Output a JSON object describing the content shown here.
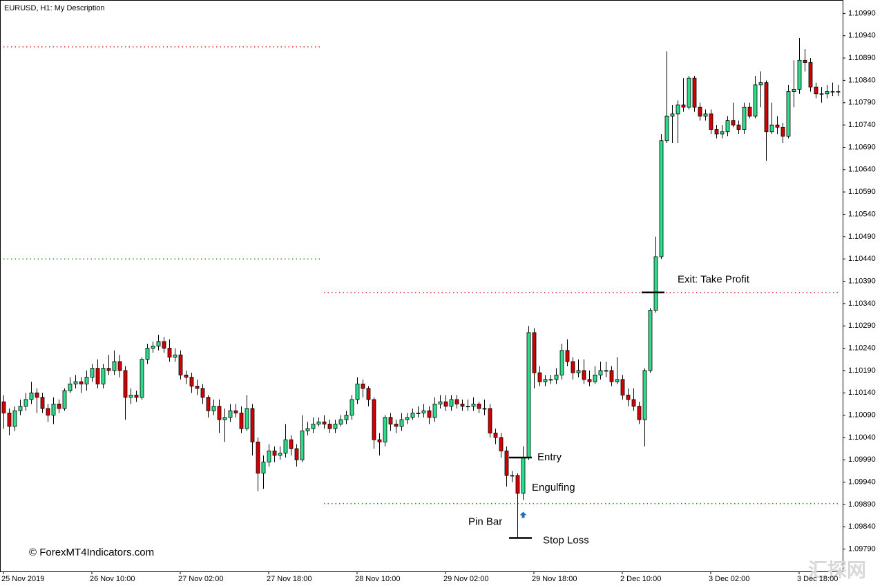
{
  "chart_data": {
    "type": "candlestick",
    "title": "EURUSD, H1:  My Description",
    "watermark": "© ForexMT4Indicators.com",
    "corner_mark": "汇探网",
    "up_color": "#2fdc8a",
    "down_color": "#d40000",
    "ylim": [
      1.0974,
      1.1102
    ],
    "yticks": [
      {
        "value": 1.0979,
        "label": "1.09790"
      },
      {
        "value": 1.0984,
        "label": "1.09840"
      },
      {
        "value": 1.0989,
        "label": "1.09890"
      },
      {
        "value": 1.0994,
        "label": "1.09940"
      },
      {
        "value": 1.0999,
        "label": "1.09990"
      },
      {
        "value": 1.1004,
        "label": "1.10040"
      },
      {
        "value": 1.1009,
        "label": "1.10090"
      },
      {
        "value": 1.1014,
        "label": "1.10140"
      },
      {
        "value": 1.1019,
        "label": "1.10190"
      },
      {
        "value": 1.1024,
        "label": "1.10240"
      },
      {
        "value": 1.1029,
        "label": "1.10290"
      },
      {
        "value": 1.1034,
        "label": "1.10340"
      },
      {
        "value": 1.1039,
        "label": "1.10390"
      },
      {
        "value": 1.1044,
        "label": "1.10440"
      },
      {
        "value": 1.1049,
        "label": "1.10490"
      },
      {
        "value": 1.1054,
        "label": "1.10540"
      },
      {
        "value": 1.1059,
        "label": "1.10590"
      },
      {
        "value": 1.1064,
        "label": "1.10640"
      },
      {
        "value": 1.1069,
        "label": "1.10690"
      },
      {
        "value": 1.1074,
        "label": "1.10740"
      },
      {
        "value": 1.1079,
        "label": "1.10790"
      },
      {
        "value": 1.1084,
        "label": "1.10840"
      },
      {
        "value": 1.1089,
        "label": "1.10890"
      },
      {
        "value": 1.1094,
        "label": "1.10940"
      },
      {
        "value": 1.1099,
        "label": "1.10990"
      }
    ],
    "categories": [
      "25 Nov 2019",
      null,
      null,
      null,
      null,
      null,
      null,
      null,
      null,
      null,
      null,
      null,
      null,
      null,
      null,
      null,
      "26 Nov 10:00",
      null,
      null,
      null,
      null,
      null,
      null,
      null,
      null,
      null,
      null,
      null,
      null,
      null,
      null,
      null,
      "27 Nov 02:00",
      null,
      null,
      null,
      null,
      null,
      null,
      null,
      null,
      null,
      null,
      null,
      null,
      null,
      null,
      null,
      "27 Nov 18:00",
      null,
      null,
      null,
      null,
      null,
      null,
      null,
      null,
      null,
      null,
      null,
      null,
      null,
      null,
      null,
      "28 Nov 10:00",
      null,
      null,
      null,
      null,
      null,
      null,
      null,
      null,
      null,
      null,
      null,
      null,
      null,
      null,
      null,
      "29 Nov 02:00",
      null,
      null,
      null,
      null,
      null,
      null,
      null,
      null,
      null,
      null,
      null,
      null,
      null,
      null,
      null,
      "29 Nov 18:00",
      null,
      null,
      null,
      null,
      null,
      null,
      null,
      null,
      null,
      null,
      null,
      null,
      null,
      null,
      null,
      "2 Dec 10:00",
      null,
      null,
      null,
      null,
      null,
      null,
      null,
      null,
      null,
      null,
      null,
      null,
      null,
      null,
      null,
      "3 Dec 02:00",
      null,
      null,
      null,
      null,
      null,
      null,
      null,
      null,
      null,
      null,
      null,
      null,
      null,
      null,
      null,
      "3 Dec 18:00",
      null,
      null,
      null,
      null,
      null,
      null,
      null
    ],
    "open": [
      1.1012,
      1.10095,
      1.10065,
      1.101,
      1.1011,
      1.10125,
      1.1014,
      1.1013,
      1.10105,
      1.1009,
      1.10115,
      1.10105,
      1.10145,
      1.1016,
      1.10165,
      1.1016,
      1.10175,
      1.10195,
      1.1016,
      1.10195,
      1.1019,
      1.1021,
      1.1019,
      1.1013,
      1.10135,
      1.1013,
      1.10215,
      1.1024,
      1.10245,
      1.10255,
      1.1024,
      1.1022,
      1.10225,
      1.1018,
      1.10175,
      1.10155,
      1.1015,
      1.1013,
      1.101,
      1.1011,
      1.1008,
      1.10085,
      1.101,
      1.10095,
      1.1006,
      1.10105,
      1.1003,
      1.0996,
      1.09985,
      1.1001,
      1.1,
      1.10005,
      1.10035,
      1.10015,
      1.0999,
      1.10055,
      1.1006,
      1.1007,
      1.10075,
      1.1007,
      1.1006,
      1.1007,
      1.1008,
      1.1009,
      1.10125,
      1.1016,
      1.1015,
      1.10125,
      1.10035,
      1.1003,
      1.10085,
      1.1007,
      1.10065,
      1.1008,
      1.10085,
      1.10095,
      1.10095,
      1.101,
      1.10085,
      1.10115,
      1.1012,
      1.1011,
      1.10125,
      1.10115,
      1.1011,
      1.1011,
      1.10115,
      1.10105,
      1.10105,
      1.1005,
      1.1004,
      1.1001,
      1.09955,
      1.09955,
      1.09915,
      1.09995,
      1.10275,
      1.10185,
      1.10165,
      1.1017,
      1.1017,
      1.1018,
      1.10235,
      1.1021,
      1.10185,
      1.1019,
      1.1017,
      1.10165,
      1.1018,
      1.1019,
      1.1019,
      1.10165,
      1.1017,
      1.10135,
      1.10125,
      1.1011,
      1.1008,
      1.1019,
      1.10325,
      1.10445,
      1.10705,
      1.1076,
      1.10765,
      1.10785,
      1.1078,
      1.10845,
      1.1078,
      1.1076,
      1.10765,
      1.1073,
      1.1072,
      1.10725,
      1.1075,
      1.1074,
      1.1073,
      1.1078,
      1.1076,
      1.1083,
      1.10835,
      1.10725,
      1.1074,
      1.10735,
      1.10715,
      1.10815,
      1.1082,
      1.10885,
      1.1088,
      1.10825,
      1.1081,
      1.1081,
      1.10815,
      1.10815
    ],
    "high": [
      1.10135,
      1.10105,
      1.1011,
      1.10125,
      1.1014,
      1.10165,
      1.1015,
      1.1014,
      1.10115,
      1.1013,
      1.10125,
      1.1015,
      1.10175,
      1.1018,
      1.10175,
      1.1019,
      1.10205,
      1.10215,
      1.10205,
      1.10225,
      1.10235,
      1.10225,
      1.102,
      1.1015,
      1.10145,
      1.1022,
      1.1025,
      1.10255,
      1.1027,
      1.10265,
      1.1026,
      1.1024,
      1.10235,
      1.1019,
      1.10185,
      1.1017,
      1.1016,
      1.10135,
      1.10125,
      1.10125,
      1.10105,
      1.10115,
      1.10115,
      1.1011,
      1.10135,
      1.10115,
      1.1004,
      1.1,
      1.10025,
      1.1002,
      1.1002,
      1.1007,
      1.10045,
      1.10025,
      1.1009,
      1.10075,
      1.10085,
      1.10085,
      1.1009,
      1.1008,
      1.1008,
      1.1009,
      1.101,
      1.10135,
      1.10175,
      1.1017,
      1.10155,
      1.1013,
      1.1005,
      1.1009,
      1.10095,
      1.1008,
      1.10095,
      1.10095,
      1.10105,
      1.1011,
      1.10115,
      1.1011,
      1.1013,
      1.10135,
      1.10135,
      1.10135,
      1.10135,
      1.10125,
      1.10125,
      1.1013,
      1.1012,
      1.10125,
      1.10115,
      1.1006,
      1.1005,
      1.1002,
      1.09965,
      1.0996,
      1.1002,
      1.1029,
      1.10285,
      1.102,
      1.1018,
      1.1018,
      1.10195,
      1.1025,
      1.1026,
      1.1022,
      1.10215,
      1.10215,
      1.1019,
      1.102,
      1.1021,
      1.1021,
      1.102,
      1.1022,
      1.1018,
      1.1015,
      1.1015,
      1.1012,
      1.10195,
      1.1033,
      1.1049,
      1.1072,
      1.10905,
      1.10785,
      1.10795,
      1.10845,
      1.1085,
      1.1085,
      1.1079,
      1.10775,
      1.10775,
      1.1074,
      1.1074,
      1.1076,
      1.1079,
      1.1075,
      1.1079,
      1.1079,
      1.1085,
      1.1086,
      1.1084,
      1.1079,
      1.1076,
      1.10745,
      1.1083,
      1.10885,
      1.10935,
      1.1091,
      1.1089,
      1.10835,
      1.10825,
      1.1083,
      1.10835,
      1.1083
    ],
    "low": [
      1.1006,
      1.10045,
      1.10055,
      1.1009,
      1.101,
      1.10115,
      1.10095,
      1.10095,
      1.10075,
      1.1007,
      1.10095,
      1.101,
      1.1014,
      1.1015,
      1.1014,
      1.10145,
      1.10165,
      1.1015,
      1.1015,
      1.1018,
      1.1018,
      1.10175,
      1.1008,
      1.10115,
      1.1012,
      1.10125,
      1.10205,
      1.1023,
      1.10235,
      1.1023,
      1.1021,
      1.1021,
      1.1017,
      1.1016,
      1.1014,
      1.10135,
      1.10115,
      1.10085,
      1.1009,
      1.1005,
      1.1003,
      1.10075,
      1.10085,
      1.1005,
      1.10055,
      1.1,
      1.0992,
      1.09925,
      1.09975,
      1.09985,
      1.0999,
      1.09995,
      1.1,
      1.09975,
      1.09985,
      1.10045,
      1.1005,
      1.10065,
      1.1006,
      1.1005,
      1.1005,
      1.10065,
      1.1007,
      1.1008,
      1.10115,
      1.1013,
      1.1011,
      1.10015,
      1.1,
      1.1002,
      1.10055,
      1.1005,
      1.10055,
      1.1007,
      1.1008,
      1.10085,
      1.10085,
      1.1007,
      1.10075,
      1.10105,
      1.101,
      1.101,
      1.10105,
      1.101,
      1.101,
      1.101,
      1.10095,
      1.1009,
      1.1004,
      1.10025,
      1.09995,
      1.0993,
      1.0994,
      1.09815,
      1.099,
      1.0999,
      1.1015,
      1.10155,
      1.10155,
      1.1016,
      1.1016,
      1.1017,
      1.102,
      1.1017,
      1.10175,
      1.1016,
      1.10155,
      1.1016,
      1.1017,
      1.10175,
      1.10155,
      1.1016,
      1.10125,
      1.1011,
      1.101,
      1.1007,
      1.1002,
      1.10185,
      1.1032,
      1.1044,
      1.107,
      1.107,
      1.107,
      1.1077,
      1.10775,
      1.1077,
      1.1075,
      1.1075,
      1.1072,
      1.1071,
      1.1071,
      1.10715,
      1.10735,
      1.1072,
      1.1072,
      1.10755,
      1.10755,
      1.1078,
      1.1066,
      1.1072,
      1.1072,
      1.107,
      1.1071,
      1.1078,
      1.1081,
      1.1086,
      1.10815,
      1.108,
      1.1079,
      1.108,
      1.10805,
      1.10805
    ],
    "close": [
      1.10095,
      1.10065,
      1.101,
      1.1011,
      1.10125,
      1.1014,
      1.1013,
      1.10105,
      1.1009,
      1.10115,
      1.10105,
      1.10145,
      1.1016,
      1.10165,
      1.1016,
      1.10175,
      1.10195,
      1.1016,
      1.10195,
      1.1019,
      1.1021,
      1.1019,
      1.1013,
      1.10135,
      1.1013,
      1.10215,
      1.1024,
      1.10245,
      1.10255,
      1.1024,
      1.1022,
      1.10225,
      1.1018,
      1.10175,
      1.10155,
      1.1015,
      1.1013,
      1.101,
      1.1011,
      1.1008,
      1.10085,
      1.101,
      1.10095,
      1.1006,
      1.10105,
      1.1003,
      1.0996,
      1.09985,
      1.1001,
      1.1,
      1.10005,
      1.10035,
      1.10015,
      1.0999,
      1.10055,
      1.1006,
      1.1007,
      1.10075,
      1.1007,
      1.1006,
      1.1007,
      1.1008,
      1.1009,
      1.10125,
      1.1016,
      1.1015,
      1.10125,
      1.10035,
      1.1003,
      1.10085,
      1.1007,
      1.10065,
      1.1008,
      1.10085,
      1.10095,
      1.10095,
      1.101,
      1.10085,
      1.10115,
      1.1012,
      1.1011,
      1.10125,
      1.10115,
      1.1011,
      1.1011,
      1.10115,
      1.10105,
      1.10105,
      1.1005,
      1.1004,
      1.1001,
      1.09955,
      1.09955,
      1.09915,
      1.09995,
      1.10275,
      1.10185,
      1.10165,
      1.1017,
      1.1017,
      1.1018,
      1.10235,
      1.1021,
      1.10185,
      1.1019,
      1.1017,
      1.10165,
      1.1018,
      1.1019,
      1.1019,
      1.10165,
      1.1017,
      1.10135,
      1.10125,
      1.1011,
      1.1008,
      1.1019,
      1.10325,
      1.10445,
      1.10705,
      1.1076,
      1.10765,
      1.10785,
      1.1078,
      1.10845,
      1.1078,
      1.1076,
      1.10765,
      1.1073,
      1.1072,
      1.10725,
      1.1075,
      1.1074,
      1.1073,
      1.1078,
      1.1076,
      1.1083,
      1.10835,
      1.10725,
      1.1074,
      1.10735,
      1.10715,
      1.10815,
      1.1082,
      1.10885,
      1.1088,
      1.10825,
      1.1081,
      1.1081,
      1.10815,
      1.10815,
      1.10815
    ],
    "levels": [
      {
        "value": 1.10915,
        "color": "#e03030",
        "from": 0,
        "to": 57
      },
      {
        "value": 1.1044,
        "color": "#2e8b2e",
        "from": 0,
        "to": 57
      },
      {
        "value": 1.10365,
        "color": "#e03030",
        "from": 58,
        "to": 151
      },
      {
        "value": 1.09892,
        "color": "#2e8b2e",
        "from": 58,
        "to": 151
      }
    ],
    "trade": {
      "entry": {
        "label": "Entry",
        "value": 1.09995
      },
      "stop_loss": {
        "label": "Stop Loss",
        "value": 1.09815
      },
      "take_profit": {
        "label": "Exit: Take Profit",
        "value": 1.10365
      }
    },
    "patterns": [
      {
        "label": "Pin Bar"
      },
      {
        "label": "Engulfing"
      }
    ]
  }
}
